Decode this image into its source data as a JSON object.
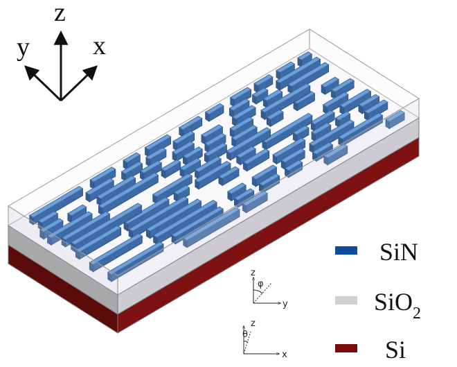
{
  "axes": {
    "z": "z",
    "y": "y",
    "x": "x"
  },
  "inset_axes": [
    {
      "vertical": "z",
      "angle": "φ",
      "horizontal": "y"
    },
    {
      "vertical": "z",
      "angle": "θ",
      "horizontal": "x"
    }
  ],
  "legend": [
    {
      "label": "SiN"
    },
    {
      "label": "SiO",
      "subscript": "2"
    },
    {
      "label": "Si"
    }
  ]
}
